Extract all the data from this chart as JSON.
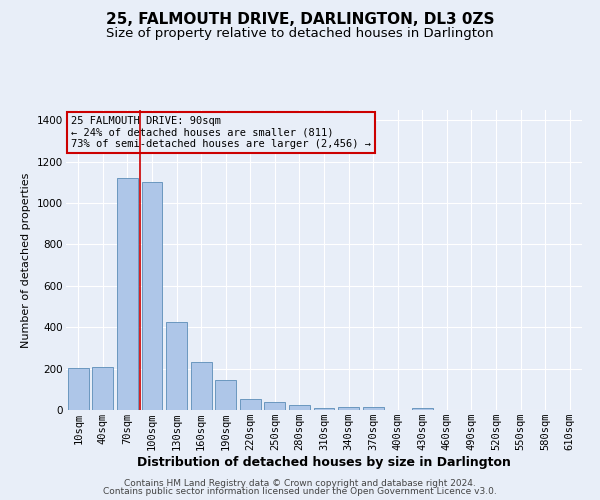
{
  "title": "25, FALMOUTH DRIVE, DARLINGTON, DL3 0ZS",
  "subtitle": "Size of property relative to detached houses in Darlington",
  "xlabel": "Distribution of detached houses by size in Darlington",
  "ylabel": "Number of detached properties",
  "footer_line1": "Contains HM Land Registry data © Crown copyright and database right 2024.",
  "footer_line2": "Contains public sector information licensed under the Open Government Licence v3.0.",
  "annotation_title": "25 FALMOUTH DRIVE: 90sqm",
  "annotation_line1": "← 24% of detached houses are smaller (811)",
  "annotation_line2": "73% of semi-detached houses are larger (2,456) →",
  "bar_labels": [
    "10sqm",
    "40sqm",
    "70sqm",
    "100sqm",
    "130sqm",
    "160sqm",
    "190sqm",
    "220sqm",
    "250sqm",
    "280sqm",
    "310sqm",
    "340sqm",
    "370sqm",
    "400sqm",
    "430sqm",
    "460sqm",
    "490sqm",
    "520sqm",
    "550sqm",
    "580sqm",
    "610sqm"
  ],
  "bar_values": [
    205,
    210,
    1120,
    1100,
    425,
    230,
    145,
    55,
    38,
    22,
    10,
    13,
    15,
    0,
    12,
    0,
    0,
    0,
    0,
    0,
    0
  ],
  "bar_color": "#aec6e8",
  "bar_edgecolor": "#5b8db8",
  "vline_color": "#cc0000",
  "vline_x_index": 2,
  "ylim": [
    0,
    1450
  ],
  "yticks": [
    0,
    200,
    400,
    600,
    800,
    1000,
    1200,
    1400
  ],
  "bg_color": "#e8eef8",
  "annotation_box_color": "#cc0000",
  "title_fontsize": 11,
  "subtitle_fontsize": 9.5,
  "ylabel_fontsize": 8,
  "xlabel_fontsize": 9,
  "tick_fontsize": 7.5,
  "footer_fontsize": 6.5
}
